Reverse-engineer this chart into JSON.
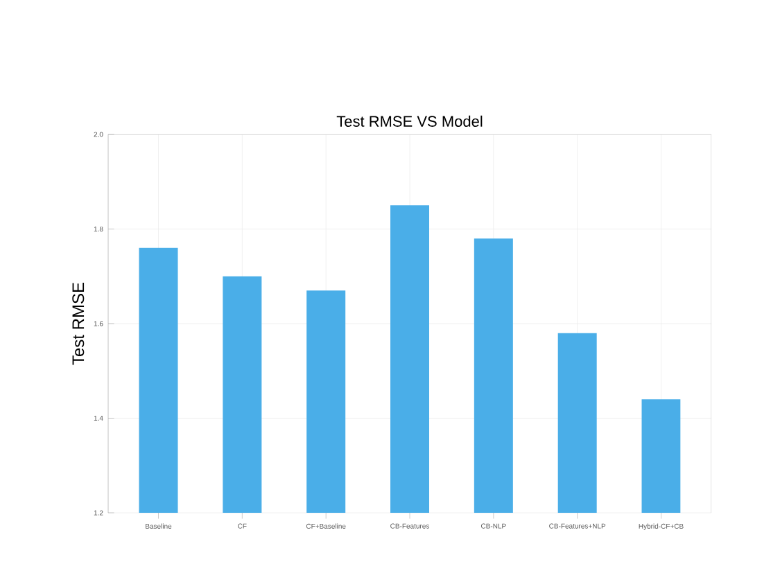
{
  "chart_data": {
    "type": "bar",
    "title": "Test RMSE VS Model",
    "ylabel": "Test RMSE",
    "categories": [
      "Baseline",
      "CF",
      "CF+Baseline",
      "CB-Features",
      "CB-NLP",
      "CB-Features+NLP",
      "Hybrid-CF+CB"
    ],
    "values": [
      1.76,
      1.7,
      1.67,
      1.85,
      1.78,
      1.58,
      1.44
    ],
    "color": "#4aaee8",
    "ylim": [
      1.2,
      2.0
    ],
    "yticks": [
      {
        "value": 1.2,
        "label": "1.2"
      },
      {
        "value": 1.4,
        "label": "1.4"
      },
      {
        "value": 1.6,
        "label": "1.6"
      },
      {
        "value": 1.8,
        "label": "1.8"
      },
      {
        "value": 2.0,
        "label": "2.0"
      }
    ],
    "grid": true
  }
}
